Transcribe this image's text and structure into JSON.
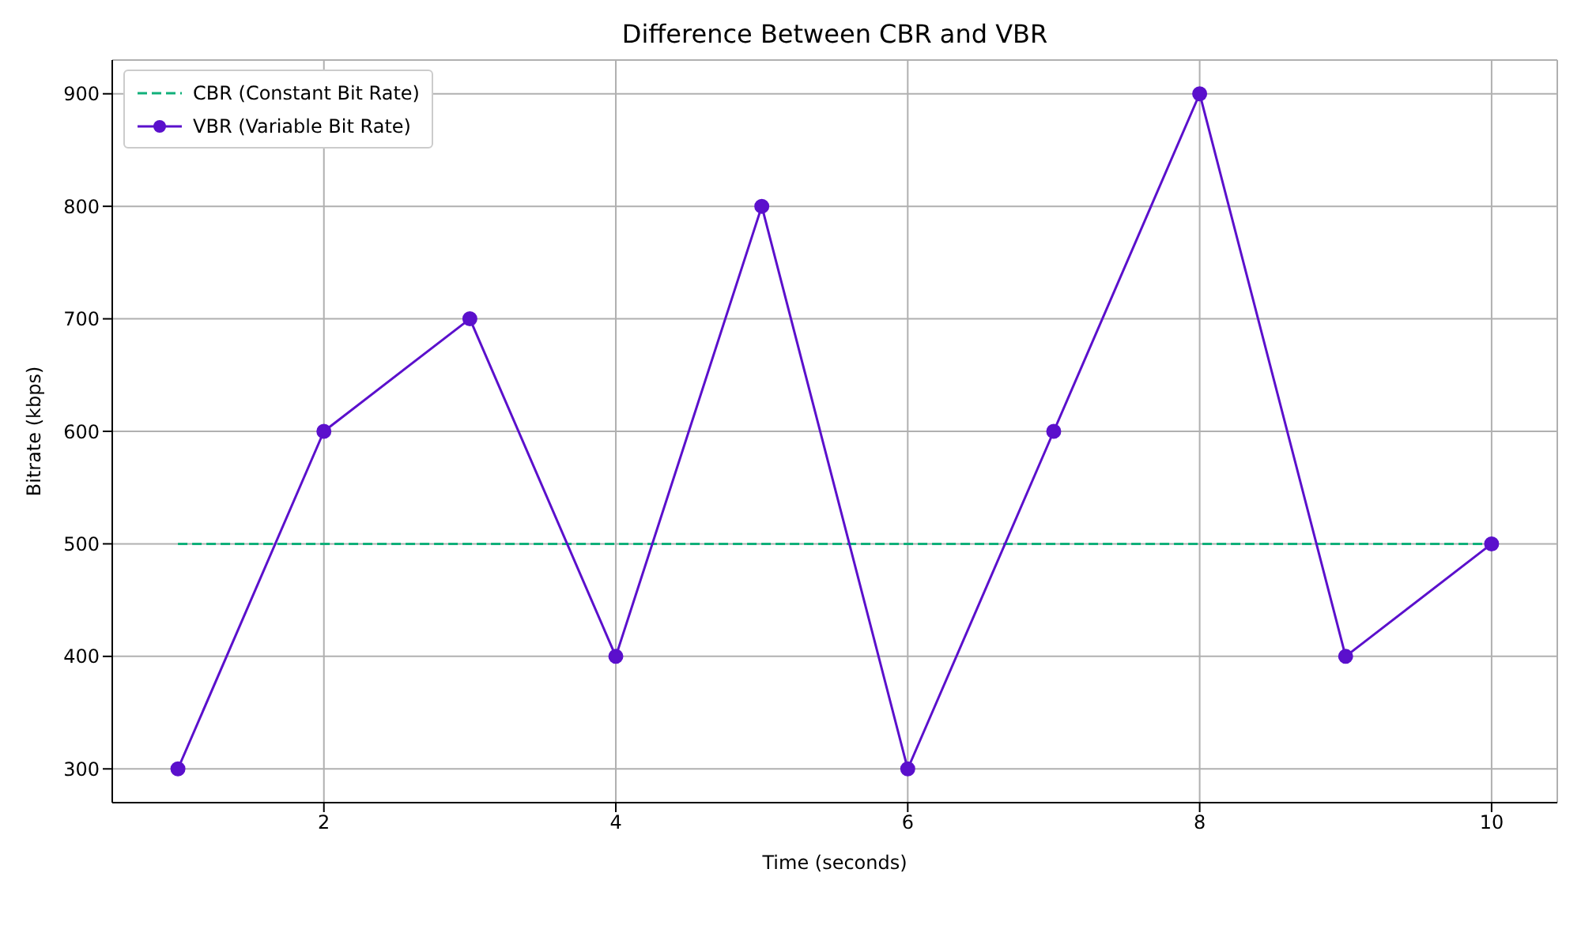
{
  "chart_data": {
    "type": "line",
    "title": "Difference Between CBR and VBR",
    "xlabel": "Time (seconds)",
    "ylabel": "Bitrate (kbps)",
    "x": [
      1,
      2,
      3,
      4,
      5,
      6,
      7,
      8,
      9,
      10
    ],
    "series": [
      {
        "name": "CBR (Constant Bit Rate)",
        "color": "#10b07a",
        "values": [
          500,
          500,
          500,
          500,
          500,
          500,
          500,
          500,
          500,
          500
        ],
        "line_style": "dashed",
        "marker": "none"
      },
      {
        "name": "VBR (Variable Bit Rate)",
        "color": "#5b10cc",
        "values": [
          300,
          600,
          700,
          400,
          800,
          300,
          600,
          900,
          400,
          500
        ],
        "line_style": "solid",
        "marker": "circle"
      }
    ],
    "xlim": [
      0.55,
      10.45
    ],
    "xticks": [
      2,
      4,
      6,
      8,
      10
    ],
    "ylim": [
      270,
      930
    ],
    "yticks": [
      300,
      400,
      500,
      600,
      700,
      800,
      900
    ],
    "grid": true,
    "legend": "top left"
  }
}
